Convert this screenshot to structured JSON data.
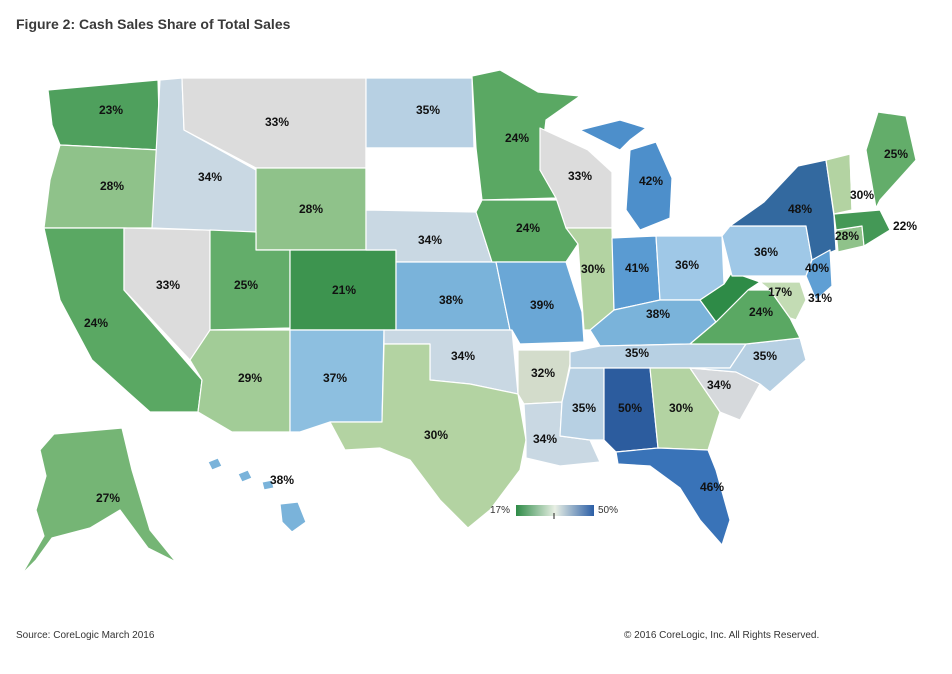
{
  "title": "Figure 2: Cash Sales Share of Total Sales",
  "source": "Source: CoreLogic March 2016",
  "copyright": "© 2016 CoreLogic, Inc. All Rights Reserved.",
  "legend": {
    "min_label": "17%",
    "max_label": "50%",
    "min_color": "#2e8b47",
    "mid_color": "#e8efe4",
    "max_color": "#2b5ea6"
  },
  "states": [
    {
      "id": "WA",
      "value": "23%",
      "color": "#4fa05d"
    },
    {
      "id": "OR",
      "value": "28%",
      "color": "#8fc28a"
    },
    {
      "id": "CA",
      "value": "24%",
      "color": "#5aa863"
    },
    {
      "id": "NV",
      "value": "33%",
      "color": "#dcdcdc"
    },
    {
      "id": "ID",
      "value": "34%",
      "color": "#c9d8e3"
    },
    {
      "id": "MT",
      "value": "33%",
      "color": "#dcdcdc"
    },
    {
      "id": "WY",
      "value": "28%",
      "color": "#8fc28a"
    },
    {
      "id": "UT",
      "value": "25%",
      "color": "#63ad6a"
    },
    {
      "id": "AZ",
      "value": "29%",
      "color": "#a2cc97"
    },
    {
      "id": "CO",
      "value": "21%",
      "color": "#3d944f"
    },
    {
      "id": "NM",
      "value": "37%",
      "color": "#8dbfe0"
    },
    {
      "id": "ND",
      "value": "35%",
      "color": "#b7d0e3"
    },
    {
      "id": "SD",
      "value": "",
      "color": "#ffffff"
    },
    {
      "id": "NE",
      "value": "34%",
      "color": "#c9d8e3"
    },
    {
      "id": "KS",
      "value": "38%",
      "color": "#7ab3da"
    },
    {
      "id": "OK",
      "value": "34%",
      "color": "#c9d8e3"
    },
    {
      "id": "TX",
      "value": "30%",
      "color": "#b3d3a2"
    },
    {
      "id": "MN",
      "value": "24%",
      "color": "#5aa863"
    },
    {
      "id": "IA",
      "value": "24%",
      "color": "#5aa863"
    },
    {
      "id": "MO",
      "value": "39%",
      "color": "#6aa7d6"
    },
    {
      "id": "AR",
      "value": "32%",
      "color": "#d3dccb"
    },
    {
      "id": "LA",
      "value": "34%",
      "color": "#c9d8e3"
    },
    {
      "id": "WI",
      "value": "33%",
      "color": "#dcdcdc"
    },
    {
      "id": "IL",
      "value": "30%",
      "color": "#b3d3a2"
    },
    {
      "id": "MI",
      "value": "42%",
      "color": "#4d8fcb"
    },
    {
      "id": "IN",
      "value": "41%",
      "color": "#5a9bd2"
    },
    {
      "id": "OH",
      "value": "36%",
      "color": "#9fc8e7"
    },
    {
      "id": "KY",
      "value": "38%",
      "color": "#7ab3da"
    },
    {
      "id": "TN",
      "value": "35%",
      "color": "#b7d0e3"
    },
    {
      "id": "MS",
      "value": "35%",
      "color": "#b7d0e3"
    },
    {
      "id": "AL",
      "value": "50%",
      "color": "#2c5c9e"
    },
    {
      "id": "GA",
      "value": "30%",
      "color": "#b3d3a2"
    },
    {
      "id": "FL",
      "value": "46%",
      "color": "#3973b8"
    },
    {
      "id": "SC",
      "value": "34%",
      "color": "#d6d9dc"
    },
    {
      "id": "NC",
      "value": "35%",
      "color": "#b7d0e3"
    },
    {
      "id": "VA",
      "value": "24%",
      "color": "#5aa863"
    },
    {
      "id": "WV",
      "value": "17%",
      "color": "#2e8b47"
    },
    {
      "id": "MD",
      "value": "31%",
      "color": "#c3dcb4"
    },
    {
      "id": "PA",
      "value": "36%",
      "color": "#9fc8e7"
    },
    {
      "id": "NY",
      "value": "48%",
      "color": "#33699f"
    },
    {
      "id": "NJ",
      "value": "40%",
      "color": "#5f9fd4"
    },
    {
      "id": "CT",
      "value": "28%",
      "color": "#8fc28a"
    },
    {
      "id": "MA",
      "value": "22%",
      "color": "#449856"
    },
    {
      "id": "VT",
      "value": "30%",
      "color": "#b3d3a2"
    },
    {
      "id": "NH",
      "value": "",
      "color": "#ffffff"
    },
    {
      "id": "ME",
      "value": "25%",
      "color": "#63ad6a"
    },
    {
      "id": "AK",
      "value": "27%",
      "color": "#75b575"
    },
    {
      "id": "HI",
      "value": "38%",
      "color": "#7ab3da"
    }
  ]
}
